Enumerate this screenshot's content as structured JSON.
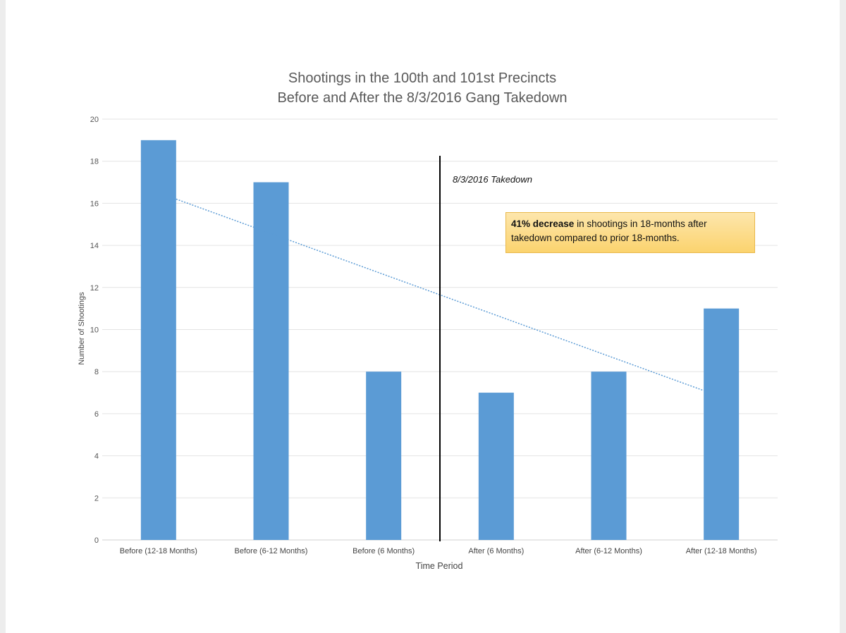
{
  "chart_data": {
    "type": "bar",
    "title_lines": [
      "Shootings in the 100th and 101st Precincts",
      "Before and After the 8/3/2016 Gang Takedown"
    ],
    "xlabel": "Time Period",
    "ylabel": "Number of Shootings",
    "categories": [
      "Before (12-18 Months)",
      "Before (6-12 Months)",
      "Before (6 Months)",
      "After (6 Months)",
      "After (6-12 Months)",
      "After (12-18 Months)"
    ],
    "values": [
      19,
      17,
      8,
      7,
      8,
      11
    ],
    "ylim": [
      0,
      20
    ],
    "yticks": [
      0,
      2,
      4,
      6,
      8,
      10,
      12,
      14,
      16,
      18,
      20
    ],
    "grid": true,
    "bar_color": "#5b9bd5",
    "trendline": {
      "style": "dotted",
      "color": "#5b9bd5",
      "start_value": 16.2,
      "end_value": 7.1
    },
    "vertical_marker": {
      "label": "8/3/2016 Takedown",
      "after_category_index": 2
    },
    "callout": {
      "bold": "41% decrease",
      "text": " in shootings in 18-months after takedown compared to prior 18-months.",
      "background": "#fcd77a"
    }
  }
}
